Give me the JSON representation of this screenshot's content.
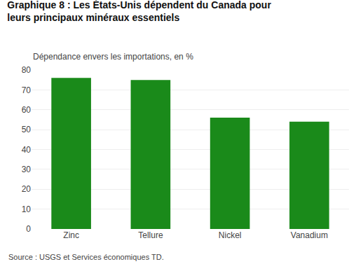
{
  "chart_data": {
    "type": "bar",
    "title": "Graphique 8 : Les États-Unis dépendent du Canada pour\nleurs principaux minéraux essentiels",
    "subtitle": "Dépendance envers les importations, en %",
    "annotations": [
      "Source : USGS et Services économiques TD."
    ],
    "categories": [
      "Zinc",
      "Tellure",
      "Nickel",
      "Vanadium"
    ],
    "values": [
      76,
      75,
      56,
      54
    ],
    "color": "#1a8a1a",
    "ylim": [
      0,
      80
    ],
    "yticks": [
      0,
      10,
      20,
      30,
      40,
      50,
      60,
      70,
      80
    ],
    "grid": true
  }
}
